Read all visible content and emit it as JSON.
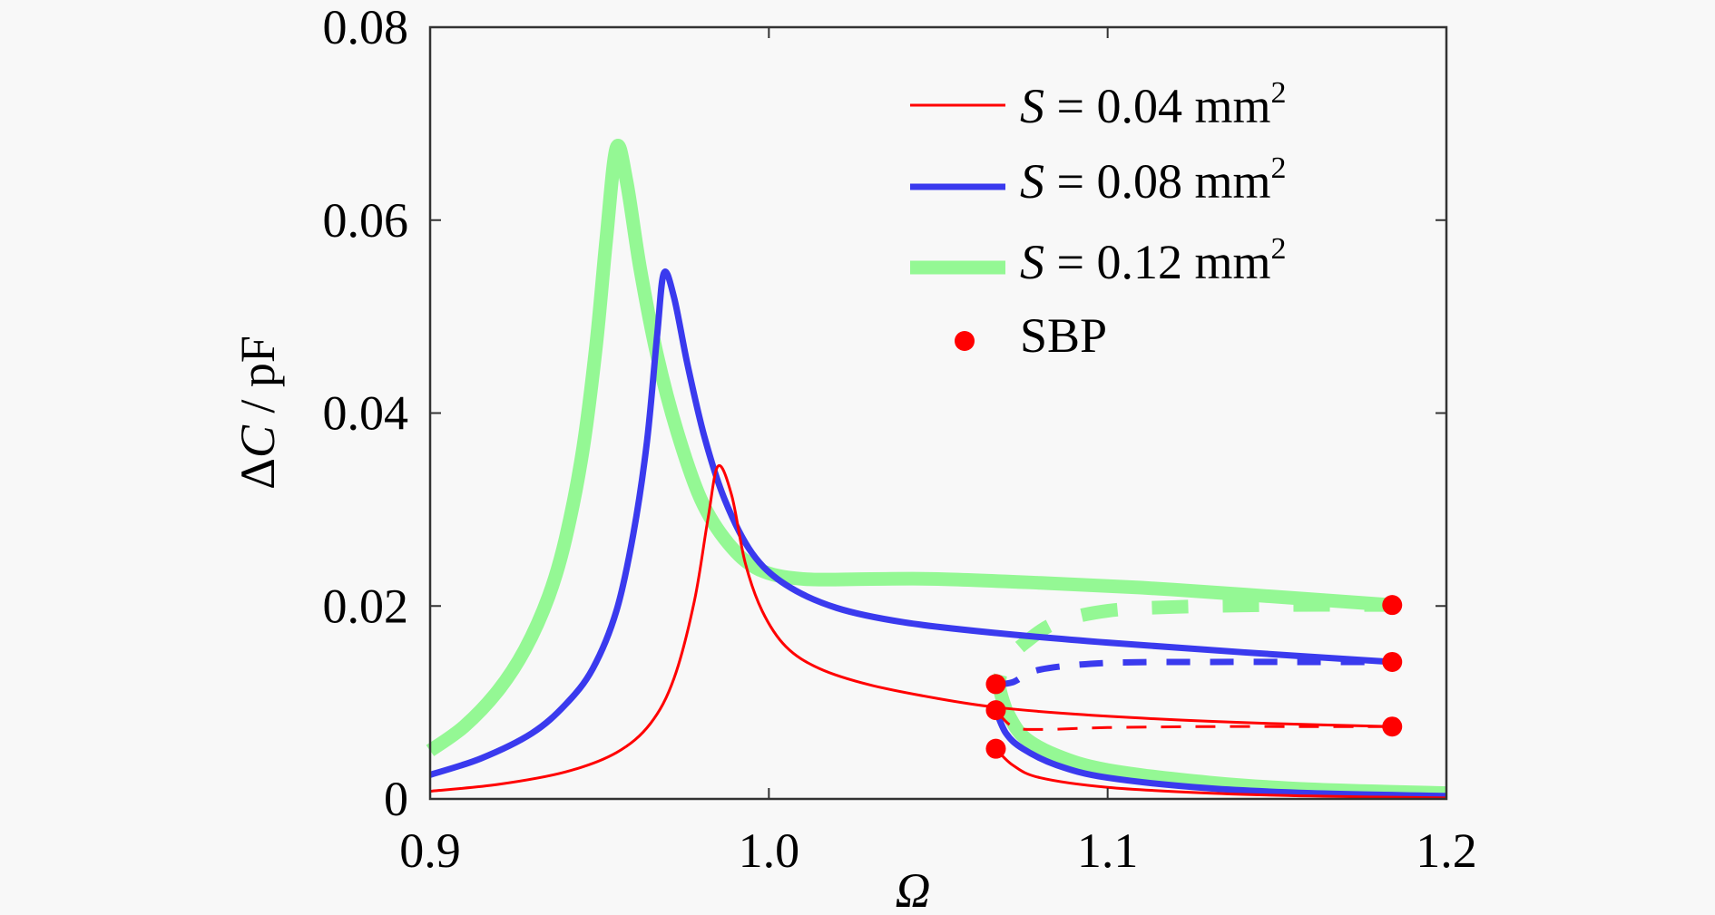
{
  "chart_data": {
    "type": "line",
    "title": "",
    "xlabel": "Ω",
    "ylabel_prefix": "Δ",
    "ylabel_var": "C",
    "ylabel_unit": " / pF",
    "xlim": [
      0.9,
      1.2
    ],
    "ylim": [
      0,
      0.08
    ],
    "xticks": [
      0.9,
      1.0,
      1.1,
      1.2
    ],
    "xtick_labels": [
      "0.9",
      "1.0",
      "1.1",
      "1.2"
    ],
    "yticks": [
      0,
      0.02,
      0.04,
      0.06,
      0.08
    ],
    "ytick_labels": [
      "0",
      "0.02",
      "0.04",
      "0.06",
      "0.08"
    ],
    "grid": false,
    "legend_position": "top-right",
    "series": [
      {
        "name": "S = 0.04 mm²",
        "legend_var": "S",
        "legend_value": " = 0.04 mm",
        "legend_sup": "2",
        "color": "#ff0000",
        "peak": {
          "x": 0.985,
          "y": 0.0345
        },
        "upper_stable": {
          "x": [
            0.9,
            0.92,
            0.94,
            0.955,
            0.965,
            0.972,
            0.978,
            0.982,
            0.985,
            0.989,
            0.993,
            0.998,
            1.005,
            1.015,
            1.03,
            1.05,
            1.067,
            1.09,
            1.12,
            1.15,
            1.184
          ],
          "y": [
            0.0008,
            0.0015,
            0.0028,
            0.0048,
            0.0078,
            0.0125,
            0.0205,
            0.029,
            0.0345,
            0.0315,
            0.0245,
            0.0195,
            0.0158,
            0.0135,
            0.0118,
            0.0104,
            0.0095,
            0.0088,
            0.0082,
            0.0078,
            0.0075
          ]
        },
        "unstable": {
          "x": [
            1.067,
            1.072,
            1.08,
            1.1,
            1.13,
            1.16,
            1.184
          ],
          "y": [
            0.0092,
            0.0075,
            0.0072,
            0.0074,
            0.0075,
            0.0075,
            0.0075
          ]
        },
        "lower_stable": {
          "x": [
            1.067,
            1.072,
            1.08,
            1.1,
            1.13,
            1.16,
            1.2
          ],
          "y": [
            0.0052,
            0.0035,
            0.0022,
            0.0012,
            0.0006,
            0.0003,
            0.0001
          ]
        }
      },
      {
        "name": "S = 0.08 mm²",
        "legend_var": "S",
        "legend_value": " = 0.08 mm",
        "legend_sup": "2",
        "color": "#3a3aee",
        "peak": {
          "x": 0.969,
          "y": 0.0545
        },
        "upper_stable": {
          "x": [
            0.9,
            0.915,
            0.93,
            0.94,
            0.948,
            0.955,
            0.96,
            0.964,
            0.967,
            0.969,
            0.972,
            0.976,
            0.981,
            0.987,
            0.995,
            1.005,
            1.02,
            1.04,
            1.067,
            1.1,
            1.14,
            1.184
          ],
          "y": [
            0.0025,
            0.0042,
            0.0068,
            0.0098,
            0.0135,
            0.0195,
            0.0275,
            0.037,
            0.048,
            0.0545,
            0.052,
            0.045,
            0.0375,
            0.031,
            0.0255,
            0.0222,
            0.0198,
            0.0183,
            0.0172,
            0.0162,
            0.0152,
            0.0142
          ]
        },
        "unstable": {
          "x": [
            1.067,
            1.072,
            1.08,
            1.1,
            1.13,
            1.16,
            1.184
          ],
          "y": [
            0.0119,
            0.0121,
            0.0134,
            0.0141,
            0.0142,
            0.0142,
            0.0142
          ]
        },
        "lower_stable": {
          "x": [
            1.067,
            1.07,
            1.075,
            1.085,
            1.1,
            1.13,
            1.16,
            1.2
          ],
          "y": [
            0.0092,
            0.0068,
            0.0052,
            0.0035,
            0.0022,
            0.0011,
            0.0006,
            0.0003
          ]
        }
      },
      {
        "name": "S = 0.12 mm²",
        "legend_var": "S",
        "legend_value": " = 0.12 mm",
        "legend_sup": "2",
        "color": "#94f894",
        "peak": {
          "x": 0.955,
          "y": 0.0675
        },
        "upper_stable": {
          "x": [
            0.9,
            0.91,
            0.92,
            0.928,
            0.935,
            0.94,
            0.945,
            0.949,
            0.952,
            0.955,
            0.958,
            0.962,
            0.967,
            0.973,
            0.98,
            0.988,
            0.997,
            1.01,
            1.03,
            1.05,
            1.08,
            1.11,
            1.14,
            1.184
          ],
          "y": [
            0.005,
            0.0075,
            0.0112,
            0.0155,
            0.021,
            0.027,
            0.036,
            0.047,
            0.058,
            0.0675,
            0.064,
            0.055,
            0.046,
            0.038,
            0.031,
            0.0265,
            0.0238,
            0.0228,
            0.0228,
            0.0228,
            0.0224,
            0.0219,
            0.0212,
            0.0201
          ]
        },
        "unstable": {
          "x": [
            1.07,
            1.068,
            1.07,
            1.076,
            1.085,
            1.1,
            1.12,
            1.15,
            1.184
          ],
          "y": [
            0.0092,
            0.0119,
            0.0142,
            0.0163,
            0.0183,
            0.0195,
            0.0199,
            0.0201,
            0.0201
          ]
        },
        "lower_stable": {
          "x": [
            1.07,
            1.075,
            1.085,
            1.1,
            1.13,
            1.16,
            1.2
          ],
          "y": [
            0.0092,
            0.0065,
            0.0045,
            0.003,
            0.0017,
            0.001,
            0.0006
          ]
        }
      }
    ],
    "sbp": {
      "name": "SBP",
      "color": "#ff0000",
      "points": [
        {
          "x": 1.067,
          "y": 0.0119
        },
        {
          "x": 1.067,
          "y": 0.0092
        },
        {
          "x": 1.067,
          "y": 0.0052
        },
        {
          "x": 1.184,
          "y": 0.0201
        },
        {
          "x": 1.184,
          "y": 0.0142
        },
        {
          "x": 1.184,
          "y": 0.0075
        }
      ]
    }
  }
}
